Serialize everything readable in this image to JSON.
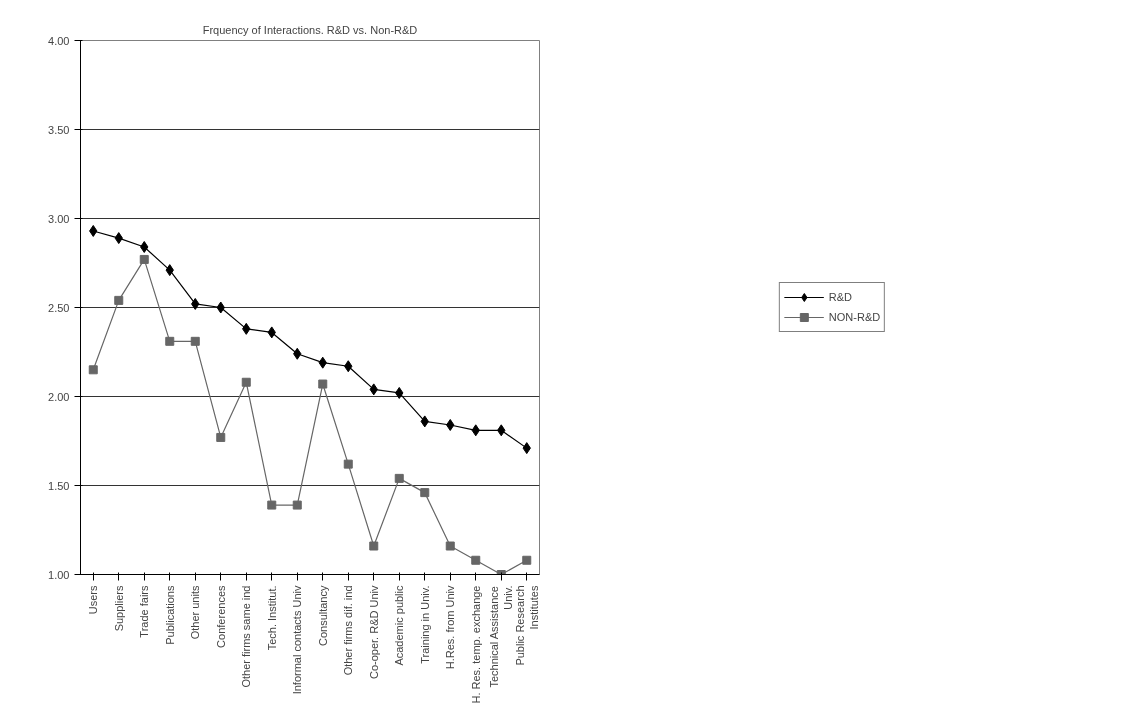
{
  "chart_data": {
    "type": "line",
    "title": "Frquency of Interactions. R&D vs. Non-R&D",
    "categories": [
      "Users",
      "Suppliers",
      "Trade fairs",
      "Publications",
      "Other units",
      "Conferences",
      "Other firms same ind",
      "Tech. Institut.",
      "Informal contacts Univ",
      "Consultancy",
      "Other firms dif. ind",
      "Co-oper. R&D Univ",
      "Academic public",
      "Training in Univ.",
      "H.Res. from Univ",
      "H. Res. temp. exchange",
      "Technical Assistance Univ.",
      "Public Research Institutes"
    ],
    "series": [
      {
        "name": "R&D",
        "color": "#000000",
        "marker": "diamond",
        "values": [
          2.93,
          2.89,
          2.84,
          2.71,
          2.52,
          2.5,
          2.38,
          2.36,
          2.24,
          2.19,
          2.17,
          2.04,
          2.02,
          1.86,
          1.84,
          1.81,
          1.81,
          1.71
        ]
      },
      {
        "name": "NON-R&D",
        "color": "#666666",
        "marker": "square",
        "values": [
          2.15,
          2.54,
          2.77,
          2.31,
          2.31,
          1.77,
          2.08,
          1.39,
          1.39,
          2.07,
          1.62,
          1.16,
          1.54,
          1.46,
          1.16,
          1.08,
          1.0,
          1.08
        ]
      }
    ],
    "ylim": [
      1,
      4
    ],
    "yticks": [
      {
        "value": 1,
        "label": "1.00"
      },
      {
        "value": 1.5,
        "label": "1.50"
      },
      {
        "value": 2,
        "label": "2.00"
      },
      {
        "value": 2.5,
        "label": "2.50"
      },
      {
        "value": 3,
        "label": "3.00"
      },
      {
        "value": 3.5,
        "label": "3.50"
      },
      {
        "value": 4,
        "label": "4.00"
      }
    ],
    "grid": "y",
    "legend": "right",
    "line_style": "solid"
  }
}
